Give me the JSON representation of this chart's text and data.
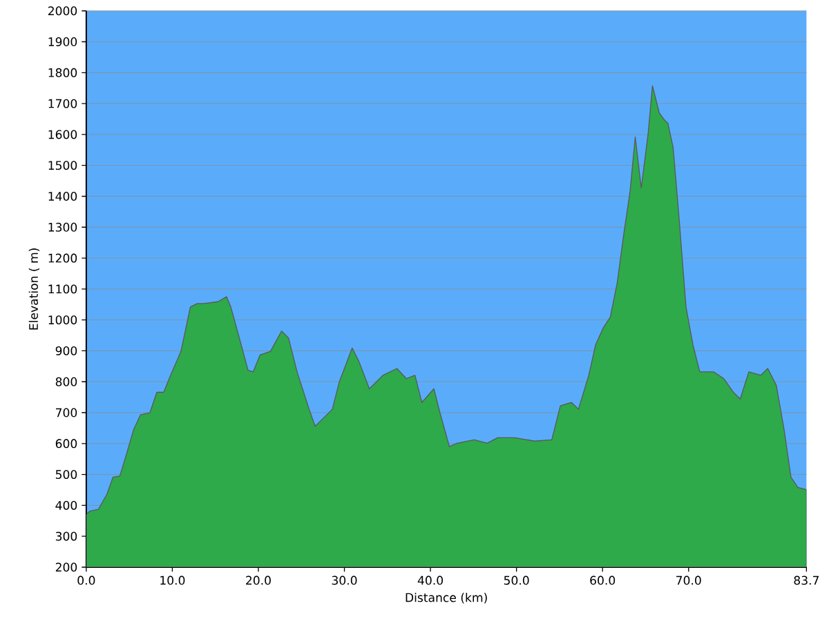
{
  "chart_data": {
    "type": "area",
    "xlabel": "Distance   (km)",
    "ylabel": "Elevation ( m)",
    "x": [
      0,
      0.4,
      1.4,
      2.4,
      3.1,
      3.9,
      4.7,
      5.5,
      6.3,
      7.4,
      8.2,
      9.0,
      9.8,
      11.0,
      12.1,
      12.9,
      13.7,
      15.3,
      16.3,
      16.8,
      18.0,
      18.8,
      19.4,
      20.2,
      21.4,
      22.7,
      23.5,
      24.5,
      25.9,
      26.6,
      27.4,
      28.6,
      29.4,
      30.9,
      31.7,
      32.9,
      34.5,
      36.1,
      37.2,
      38.2,
      39.0,
      40.4,
      41.1,
      42.2,
      43.1,
      45.1,
      46.6,
      47.8,
      49.8,
      52.1,
      54.1,
      55.1,
      56.4,
      57.2,
      58.4,
      59.2,
      60.1,
      60.9,
      61.7,
      62.5,
      63.2,
      63.8,
      64.5,
      65.3,
      65.8,
      66.6,
      67.2,
      67.6,
      68.2,
      68.9,
      69.7,
      70.5,
      71.3,
      72.9,
      74.1,
      75.2,
      76.0,
      77.0,
      78.4,
      79.2,
      80.2,
      81.1,
      81.9,
      82.7,
      83.7
    ],
    "values": [
      370,
      381,
      387,
      436,
      491,
      495,
      568,
      645,
      693,
      700,
      766,
      766,
      821,
      898,
      1042,
      1053,
      1053,
      1059,
      1075,
      1042,
      920,
      837,
      832,
      887,
      898,
      964,
      942,
      832,
      711,
      656,
      678,
      711,
      799,
      909,
      865,
      777,
      821,
      843,
      810,
      821,
      733,
      777,
      700,
      590,
      601,
      612,
      601,
      619,
      619,
      608,
      612,
      722,
      733,
      711,
      821,
      920,
      975,
      1009,
      1119,
      1284,
      1416,
      1592,
      1427,
      1603,
      1758,
      1669,
      1647,
      1636,
      1559,
      1328,
      1042,
      920,
      832,
      832,
      810,
      766,
      744,
      832,
      821,
      843,
      788,
      645,
      491,
      458,
      451
    ],
    "color": "#2eaa4a",
    "xlim": [
      0,
      83.7
    ],
    "ylim": [
      200,
      2000
    ],
    "xticks": [
      {
        "value": 0,
        "label": "0.0"
      },
      {
        "value": 10,
        "label": "10.0"
      },
      {
        "value": 20,
        "label": "20.0"
      },
      {
        "value": 30,
        "label": "30.0"
      },
      {
        "value": 40,
        "label": "40.0"
      },
      {
        "value": 50,
        "label": "50.0"
      },
      {
        "value": 60,
        "label": "60.0"
      },
      {
        "value": 70,
        "label": "70.0"
      },
      {
        "value": 83.7,
        "label": "83.7"
      }
    ],
    "yticks": [
      200,
      300,
      400,
      500,
      600,
      700,
      800,
      900,
      1000,
      1100,
      1200,
      1300,
      1400,
      1500,
      1600,
      1700,
      1800,
      1900,
      2000
    ],
    "grid": "y"
  }
}
